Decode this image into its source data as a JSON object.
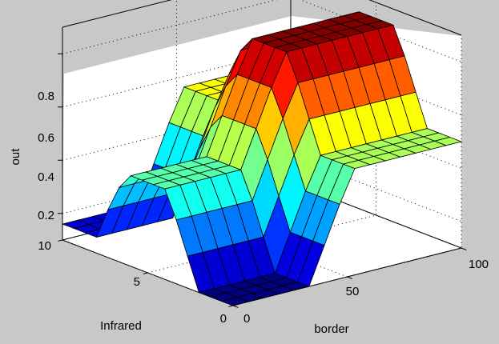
{
  "chart_data": {
    "type": "surface",
    "title": "",
    "xlabel": "border",
    "ylabel": "Infrared",
    "zlabel": "out",
    "xlim": [
      0,
      100
    ],
    "ylim": [
      0,
      10
    ],
    "zlim": [
      0.1,
      0.9
    ],
    "x_ticks": [
      0,
      50,
      100
    ],
    "y_ticks": [
      0,
      5,
      10
    ],
    "z_ticks": [
      0.2,
      0.4,
      0.6,
      0.8
    ],
    "x_tick_labels": [
      "0",
      "50",
      "100"
    ],
    "y_tick_labels": [
      "0",
      "5",
      "10"
    ],
    "z_tick_labels": [
      "0.2",
      "0.4",
      "0.6",
      "0.8"
    ],
    "grid": true,
    "colormap": "jet",
    "x": [
      0,
      6.7,
      13.3,
      20,
      26.7,
      33.3,
      40,
      46.7,
      53.3,
      60,
      66.7,
      73.3,
      80,
      86.7,
      93.3,
      100
    ],
    "y": [
      0,
      0.67,
      1.33,
      2,
      2.67,
      3.33,
      4,
      4.67,
      5.33,
      6,
      6.67,
      7.33,
      8,
      8.67,
      9.33,
      10
    ],
    "z": [
      [
        0.1,
        0.1,
        0.1,
        0.1,
        0.1,
        0.1,
        0.24,
        0.38,
        0.5,
        0.5,
        0.5,
        0.5,
        0.5,
        0.5,
        0.5,
        0.5
      ],
      [
        0.1,
        0.1,
        0.1,
        0.1,
        0.1,
        0.1,
        0.24,
        0.38,
        0.5,
        0.5,
        0.5,
        0.5,
        0.5,
        0.5,
        0.5,
        0.5
      ],
      [
        0.1,
        0.1,
        0.1,
        0.1,
        0.1,
        0.1,
        0.24,
        0.38,
        0.5,
        0.5,
        0.5,
        0.5,
        0.5,
        0.5,
        0.5,
        0.5
      ],
      [
        0.1,
        0.1,
        0.1,
        0.1,
        0.1,
        0.1,
        0.24,
        0.38,
        0.5,
        0.5,
        0.5,
        0.5,
        0.5,
        0.5,
        0.5,
        0.5
      ],
      [
        0.22,
        0.22,
        0.22,
        0.22,
        0.22,
        0.22,
        0.36,
        0.5,
        0.62,
        0.62,
        0.62,
        0.62,
        0.62,
        0.62,
        0.62,
        0.62
      ],
      [
        0.34,
        0.34,
        0.34,
        0.34,
        0.34,
        0.34,
        0.48,
        0.62,
        0.74,
        0.74,
        0.74,
        0.74,
        0.74,
        0.74,
        0.74,
        0.74
      ],
      [
        0.44,
        0.44,
        0.44,
        0.44,
        0.44,
        0.44,
        0.58,
        0.72,
        0.84,
        0.84,
        0.84,
        0.84,
        0.84,
        0.84,
        0.84,
        0.84
      ],
      [
        0.44,
        0.44,
        0.44,
        0.44,
        0.44,
        0.44,
        0.58,
        0.72,
        0.84,
        0.84,
        0.84,
        0.84,
        0.84,
        0.84,
        0.84,
        0.84
      ],
      [
        0.44,
        0.44,
        0.44,
        0.44,
        0.44,
        0.44,
        0.58,
        0.72,
        0.84,
        0.84,
        0.84,
        0.84,
        0.84,
        0.84,
        0.84,
        0.84
      ],
      [
        0.44,
        0.44,
        0.44,
        0.44,
        0.44,
        0.44,
        0.58,
        0.72,
        0.84,
        0.84,
        0.84,
        0.84,
        0.84,
        0.84,
        0.84,
        0.84
      ],
      [
        0.38,
        0.38,
        0.38,
        0.38,
        0.38,
        0.38,
        0.52,
        0.66,
        0.78,
        0.78,
        0.78,
        0.78,
        0.78,
        0.78,
        0.78,
        0.78
      ],
      [
        0.28,
        0.28,
        0.28,
        0.28,
        0.28,
        0.28,
        0.42,
        0.56,
        0.68,
        0.68,
        0.68,
        0.68,
        0.68,
        0.68,
        0.68,
        0.68
      ],
      [
        0.16,
        0.16,
        0.16,
        0.16,
        0.16,
        0.16,
        0.3,
        0.44,
        0.56,
        0.56,
        0.56,
        0.56,
        0.56,
        0.56,
        0.56,
        0.56
      ],
      [
        0.16,
        0.16,
        0.16,
        0.16,
        0.16,
        0.16,
        0.3,
        0.44,
        0.56,
        0.56,
        0.56,
        0.56,
        0.56,
        0.56,
        0.56,
        0.56
      ],
      [
        0.16,
        0.16,
        0.16,
        0.16,
        0.16,
        0.16,
        0.3,
        0.44,
        0.56,
        0.56,
        0.56,
        0.56,
        0.56,
        0.56,
        0.56,
        0.56
      ],
      [
        0.16,
        0.16,
        0.16,
        0.16,
        0.16,
        0.16,
        0.3,
        0.44,
        0.56,
        0.56,
        0.56,
        0.56,
        0.56,
        0.56,
        0.56,
        0.56
      ]
    ]
  },
  "colors": {
    "figure_background": "#c8c8c8",
    "axes_background": "#ffffff",
    "axis_line": "#000000",
    "mesh_edge": "#000000"
  }
}
